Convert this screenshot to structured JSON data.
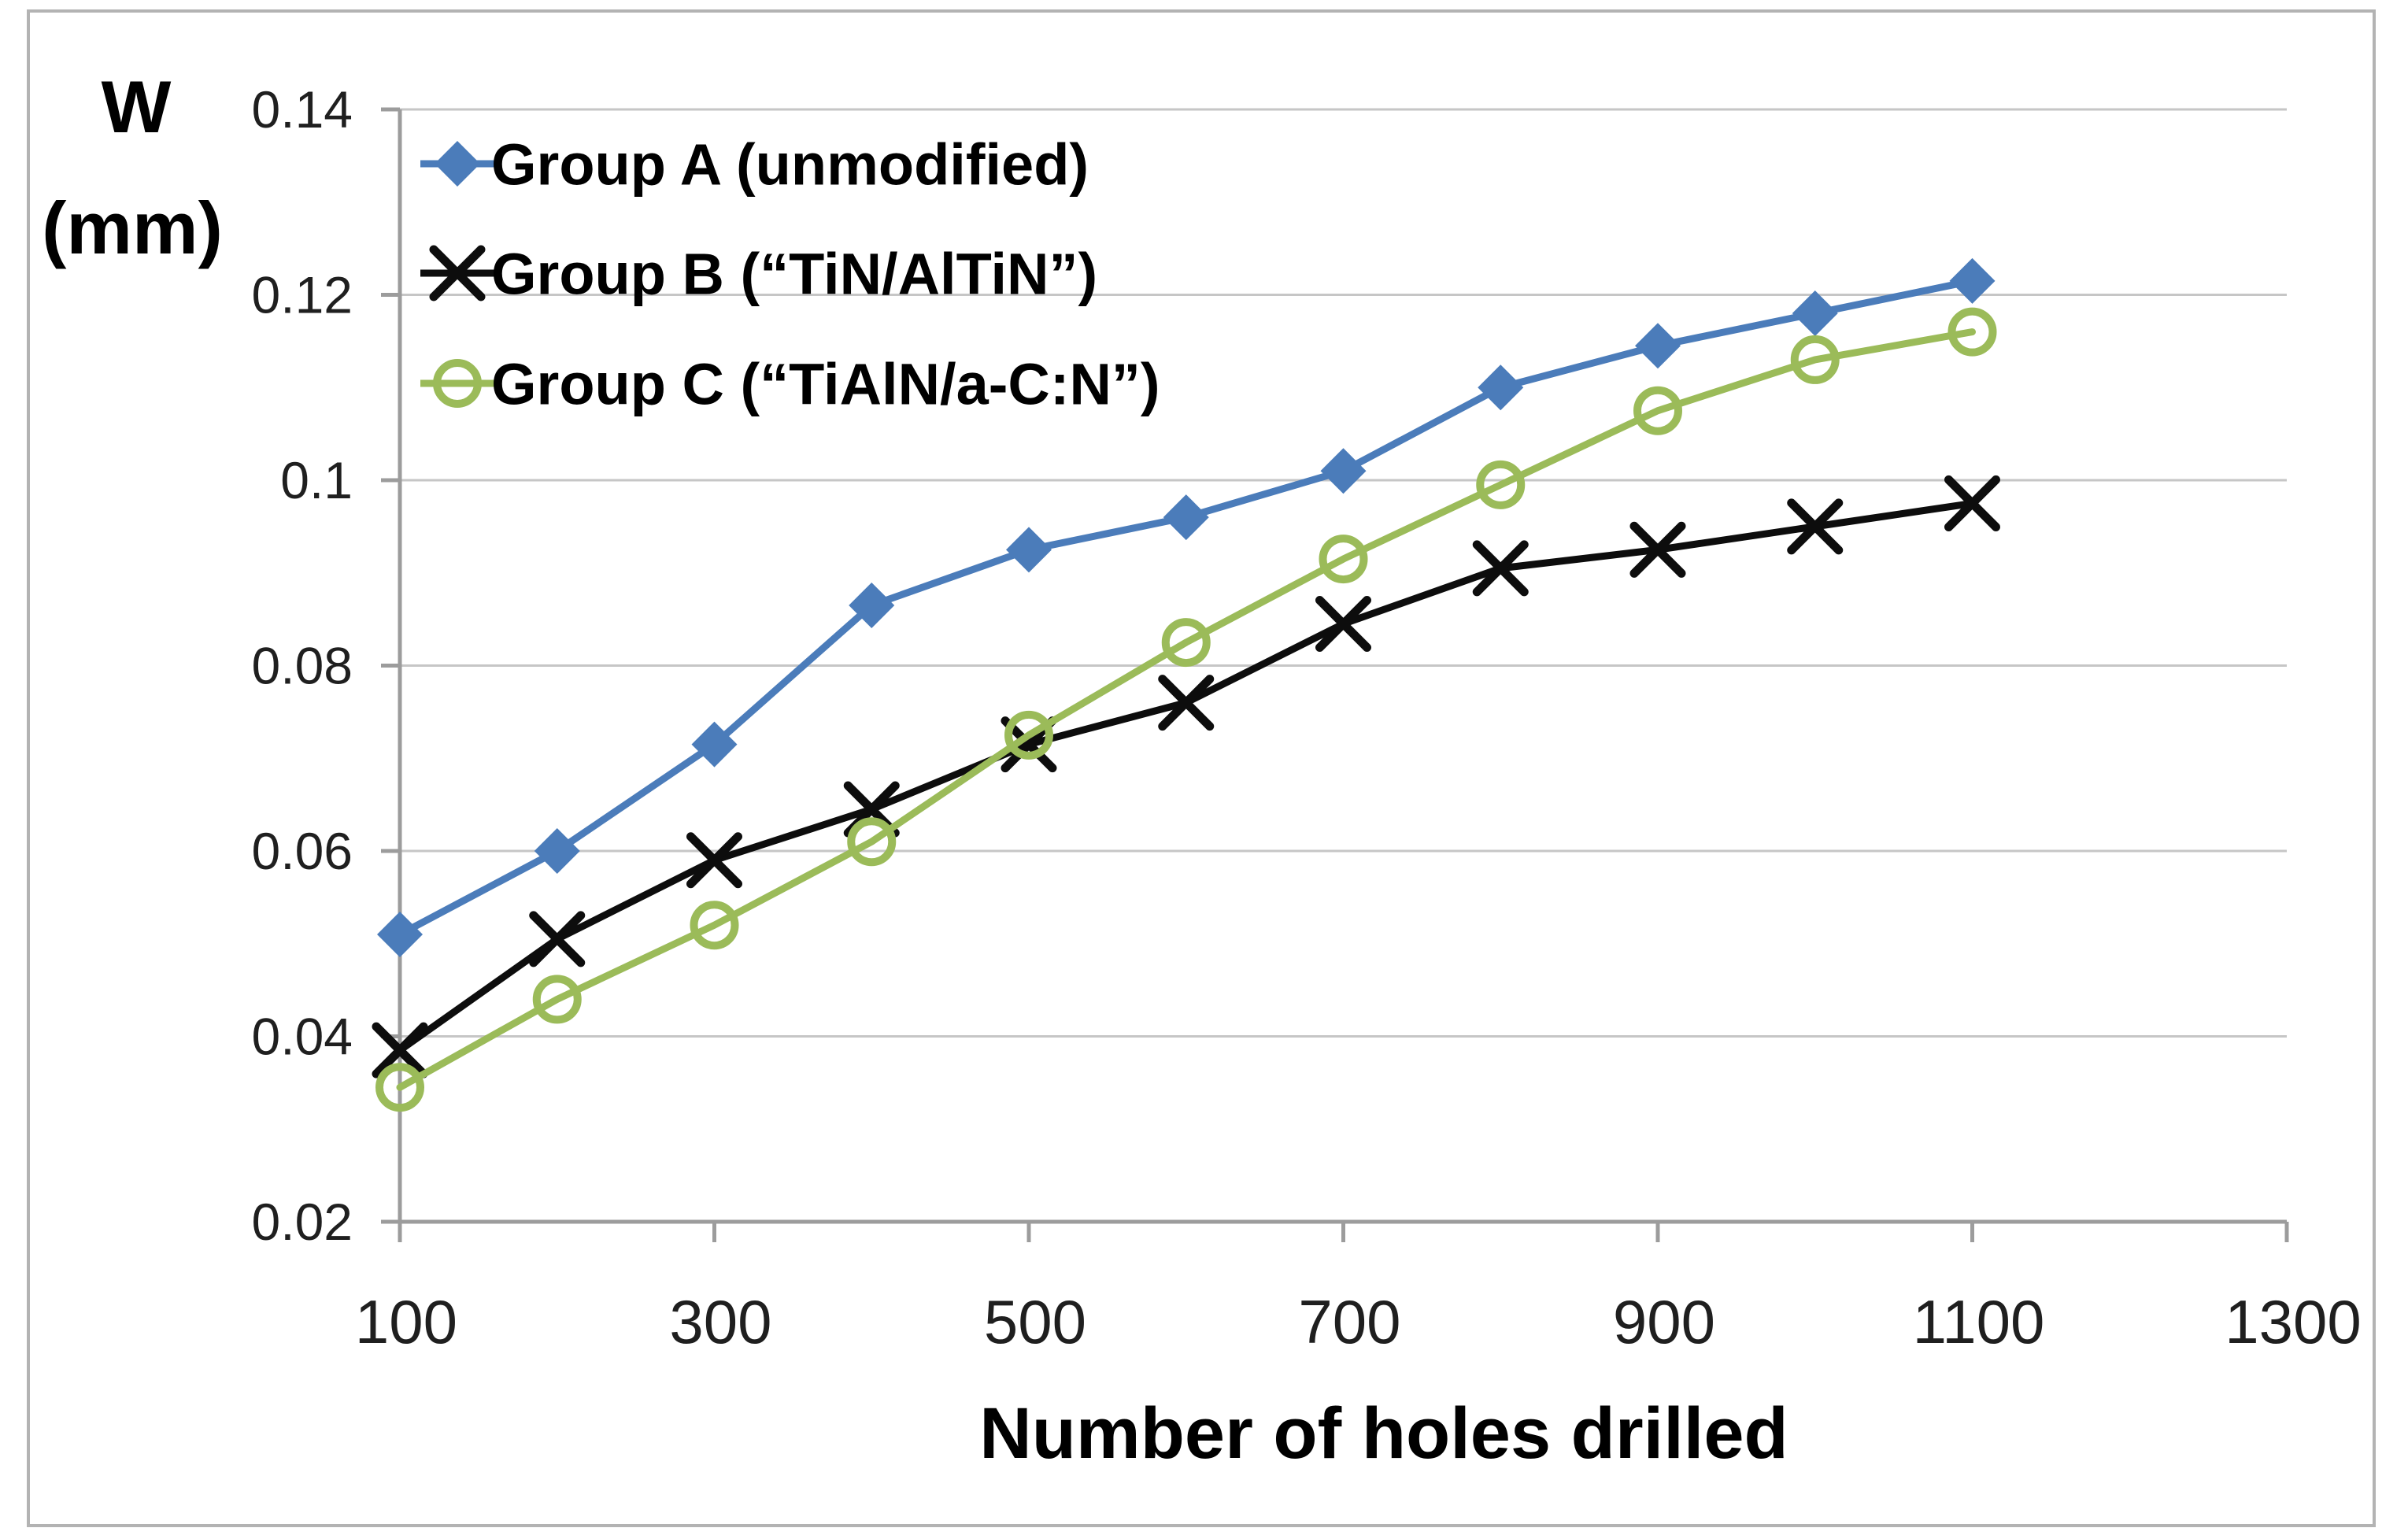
{
  "chart_data": {
    "type": "line",
    "title": "",
    "xlabel": "Number of holes drilled",
    "ylabel": "W (mm)",
    "ylabel_lines": [
      "W",
      "(mm)"
    ],
    "x": [
      100,
      200,
      300,
      400,
      500,
      600,
      700,
      800,
      900,
      1000,
      1100
    ],
    "series": [
      {
        "name": "Group A (unmodified)",
        "marker": "diamond",
        "color": "#4B7CBA",
        "values": [
          0.051,
          0.06,
          0.0715,
          0.0865,
          0.0925,
          0.096,
          0.101,
          0.11,
          0.1145,
          0.118,
          0.1215
        ]
      },
      {
        "name": "Group B (“TiN/AlTiN”)",
        "marker": "x",
        "color": "#0D0D0D",
        "values": [
          0.0385,
          0.0505,
          0.059,
          0.0645,
          0.0715,
          0.076,
          0.0845,
          0.0905,
          0.0925,
          0.095,
          0.0975
        ]
      },
      {
        "name": "Group C (“TiAlN/a-C:N”)",
        "marker": "circle-open",
        "color": "#9BBB59",
        "values": [
          0.0345,
          0.044,
          0.052,
          0.061,
          0.0725,
          0.0825,
          0.0915,
          0.0995,
          0.1075,
          0.113,
          0.116
        ]
      }
    ],
    "xlim": [
      100,
      1300
    ],
    "ylim": [
      0.02,
      0.14
    ],
    "xticks": [
      100,
      300,
      500,
      700,
      900,
      1100,
      1300
    ],
    "xtick_labels": [
      "100",
      "300",
      "500",
      "700",
      "900",
      "1100",
      "1300"
    ],
    "yticks": [
      0.02,
      0.04,
      0.06,
      0.08,
      0.1,
      0.12,
      0.14
    ],
    "ytick_labels": [
      "0.02",
      "0.04",
      "0.06",
      "0.08",
      "0.1",
      "0.12",
      "0.14"
    ],
    "grid": "horizontal",
    "legend_position": "top-left-inside",
    "colors": {
      "axis": "#9C9C9C",
      "grid": "#C6C6C6",
      "tick_text": "#1F1F1F",
      "title_text": "#000000",
      "page_border": "#B3B3B3",
      "background": "#FFFFFF"
    }
  }
}
